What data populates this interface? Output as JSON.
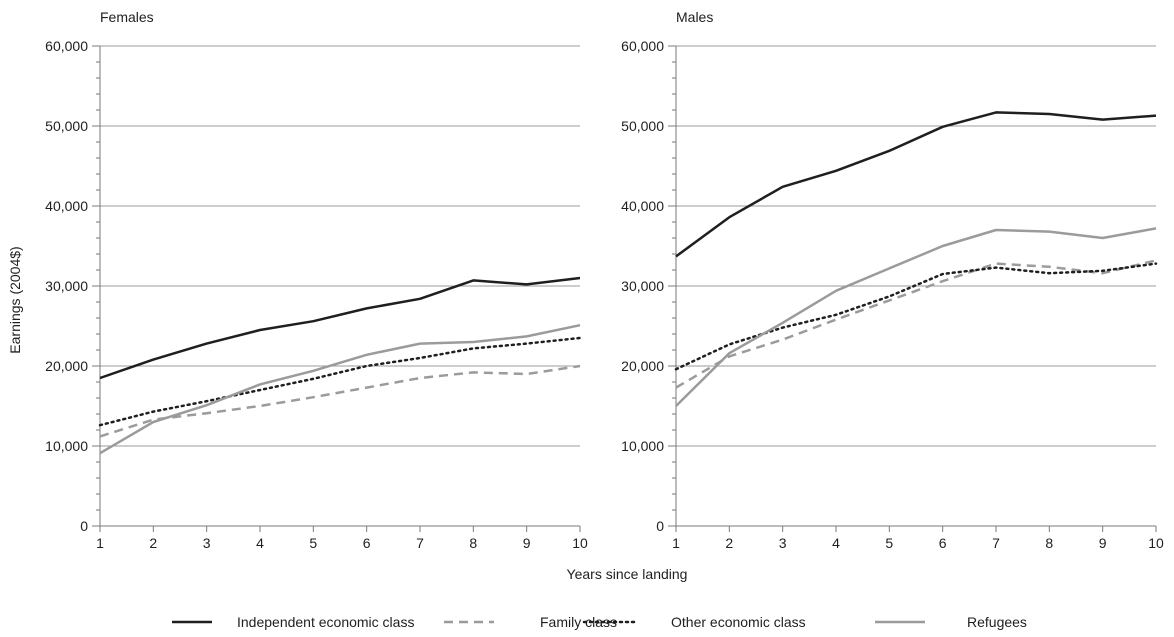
{
  "chart_data": [
    {
      "type": "line",
      "title": "Females",
      "xlabel": "Years since landing",
      "ylabel": "Earnings (2004$)",
      "x": [
        1,
        2,
        3,
        4,
        5,
        6,
        7,
        8,
        9,
        10
      ],
      "xlim": [
        1,
        10
      ],
      "ylim": [
        0,
        60000
      ],
      "yticks": [
        0,
        10000,
        20000,
        30000,
        40000,
        50000,
        60000
      ],
      "ytick_labels": [
        "0",
        "10,000",
        "20,000",
        "30,000",
        "40,000",
        "50,000",
        "60,000"
      ],
      "grid": true,
      "series": [
        {
          "name": "Independent economic class",
          "values": [
            18500,
            20800,
            22800,
            24500,
            25600,
            27200,
            28400,
            30700,
            30200,
            31000
          ]
        },
        {
          "name": "Family class",
          "values": [
            11200,
            13300,
            14100,
            15000,
            16100,
            17300,
            18500,
            19200,
            19000,
            20000
          ]
        },
        {
          "name": "Other economic class",
          "values": [
            12600,
            14300,
            15600,
            17000,
            18400,
            20000,
            21000,
            22200,
            22800,
            23500
          ]
        },
        {
          "name": "Refugees",
          "values": [
            9100,
            13000,
            15100,
            17700,
            19400,
            21400,
            22800,
            23000,
            23700,
            25100
          ]
        }
      ]
    },
    {
      "type": "line",
      "title": "Males",
      "xlabel": "Years since landing",
      "ylabel": "",
      "x": [
        1,
        2,
        3,
        4,
        5,
        6,
        7,
        8,
        9,
        10
      ],
      "xlim": [
        1,
        10
      ],
      "ylim": [
        0,
        60000
      ],
      "yticks": [
        0,
        10000,
        20000,
        30000,
        40000,
        50000,
        60000
      ],
      "ytick_labels": [
        "0",
        "10,000",
        "20,000",
        "30,000",
        "40,000",
        "50,000",
        "60,000"
      ],
      "grid": true,
      "series": [
        {
          "name": "Independent economic class",
          "values": [
            33700,
            38600,
            42400,
            44400,
            46900,
            49900,
            51700,
            51500,
            50800,
            51300
          ]
        },
        {
          "name": "Family class",
          "values": [
            17300,
            21200,
            23300,
            25800,
            28200,
            30600,
            32800,
            32400,
            31600,
            33200
          ]
        },
        {
          "name": "Other economic class",
          "values": [
            19600,
            22700,
            24800,
            26400,
            28700,
            31500,
            32300,
            31600,
            31900,
            32800
          ]
        },
        {
          "name": "Refugees",
          "values": [
            15000,
            21600,
            25400,
            29400,
            32200,
            35000,
            37000,
            36800,
            36000,
            37200
          ]
        }
      ]
    }
  ],
  "legend": {
    "placement": "bottom",
    "items": [
      {
        "label": "Independent economic class",
        "color": "#1f1f1f",
        "style": "solid"
      },
      {
        "label": "Family class",
        "color": "#9b9b9b",
        "style": "dashed"
      },
      {
        "label": "Other economic class",
        "color": "#1f1f1f",
        "style": "dotted"
      },
      {
        "label": "Refugees",
        "color": "#9b9b9b",
        "style": "solid"
      }
    ]
  },
  "series_styles": [
    {
      "color": "#1f1f1f",
      "style": "solid"
    },
    {
      "color": "#9b9b9b",
      "style": "dashed"
    },
    {
      "color": "#1f1f1f",
      "style": "dotted"
    },
    {
      "color": "#9b9b9b",
      "style": "solid"
    }
  ]
}
